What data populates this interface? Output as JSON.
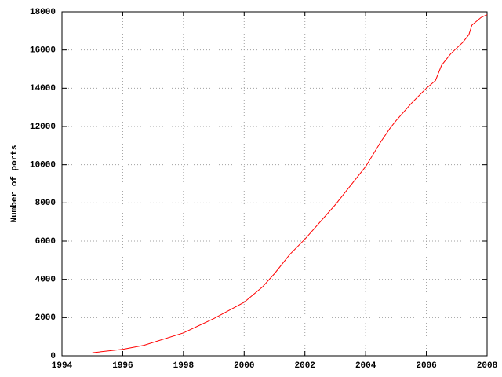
{
  "chart_data": {
    "type": "line",
    "ylabel": "Number of ports",
    "x": [
      1995,
      1996,
      1996.7,
      1998,
      1999,
      2000,
      2000.6,
      2001,
      2001.5,
      2002,
      2003,
      2004,
      2004.5,
      2004.8,
      2005,
      2005.5,
      2006,
      2006.3,
      2006.5,
      2006.8,
      2007.2,
      2007.4,
      2007.5,
      2007.8,
      2008
    ],
    "series": [
      {
        "color": "#ff0000",
        "values": [
          160,
          340,
          550,
          1200,
          1950,
          2800,
          3600,
          4300,
          5300,
          6100,
          7900,
          9900,
          11200,
          11900,
          12300,
          13200,
          14000,
          14400,
          15200,
          15800,
          16400,
          16800,
          17300,
          17700,
          17850
        ]
      }
    ],
    "xlim": [
      1994,
      2008
    ],
    "xticks": [
      1994,
      1996,
      1998,
      2000,
      2002,
      2004,
      2006,
      2008
    ],
    "ylim": [
      0,
      18000
    ],
    "yticks": [
      0,
      2000,
      4000,
      6000,
      8000,
      10000,
      12000,
      14000,
      16000,
      18000
    ],
    "grid": true
  }
}
